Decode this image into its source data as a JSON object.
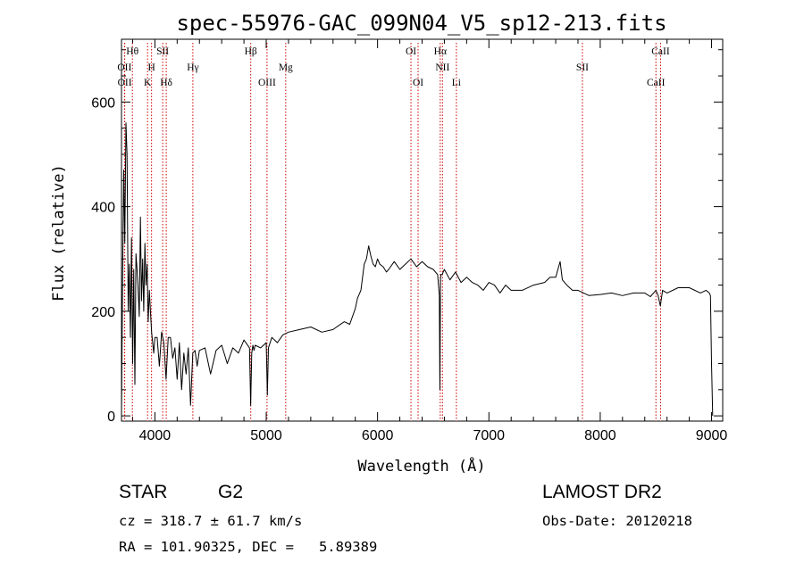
{
  "title": "spec-55976-GAC_099N04_V5_sp12-213.fits",
  "info": {
    "class": "STAR",
    "subclass": "G2",
    "survey": "LAMOST DR2",
    "cz": "cz = 318.7 ± 61.7 km/s",
    "obs_date": "Obs-Date: 20120218",
    "coords": "RA = 101.90325, DEC =   5.89389"
  },
  "chart_data": {
    "type": "line",
    "title": "spec-55976-GAC_099N04_V5_sp12-213.fits",
    "xlabel": "Wavelength (Å)",
    "ylabel": "Flux (relative)",
    "xlim": [
      3700,
      9100
    ],
    "ylim": [
      -10,
      720
    ],
    "xticks": [
      4000,
      5000,
      6000,
      7000,
      8000,
      9000
    ],
    "yticks": [
      0,
      200,
      400,
      600
    ],
    "grid": false,
    "series": [
      {
        "x": [
          3700,
          3710,
          3720,
          3730,
          3740,
          3750,
          3760,
          3770,
          3780,
          3790,
          3800,
          3810,
          3820,
          3830,
          3840,
          3850,
          3860,
          3870,
          3880,
          3890,
          3900,
          3910,
          3920,
          3930,
          3940,
          3950,
          3960,
          3970,
          3980,
          3990,
          4000,
          4020,
          4040,
          4060,
          4080,
          4100,
          4120,
          4140,
          4160,
          4180,
          4200,
          4220,
          4240,
          4260,
          4280,
          4300,
          4320,
          4340,
          4360,
          4380,
          4400,
          4450,
          4500,
          4550,
          4600,
          4650,
          4700,
          4750,
          4800,
          4850,
          4860,
          4870,
          4880,
          4890,
          4900,
          4950,
          5000,
          5010,
          5020,
          5050,
          5100,
          5150,
          5200,
          5300,
          5400,
          5500,
          5600,
          5700,
          5750,
          5800,
          5820,
          5850,
          5880,
          5900,
          5920,
          5940,
          5960,
          5980,
          6000,
          6020,
          6050,
          6080,
          6100,
          6150,
          6200,
          6250,
          6300,
          6350,
          6400,
          6450,
          6500,
          6540,
          6555,
          6560,
          6565,
          6570,
          6580,
          6600,
          6650,
          6700,
          6750,
          6800,
          6850,
          6900,
          6950,
          7000,
          7050,
          7100,
          7150,
          7200,
          7300,
          7400,
          7500,
          7550,
          7580,
          7600,
          7620,
          7640,
          7660,
          7700,
          7750,
          7800,
          7900,
          8000,
          8100,
          8200,
          8300,
          8400,
          8450,
          8500,
          8520,
          8540,
          8560,
          8600,
          8700,
          8800,
          8900,
          8950,
          8980,
          8990,
          9000,
          9010
        ],
        "y": [
          0,
          260,
          470,
          330,
          560,
          500,
          200,
          290,
          150,
          340,
          100,
          280,
          60,
          310,
          280,
          240,
          190,
          380,
          220,
          300,
          200,
          330,
          250,
          290,
          180,
          240,
          200,
          160,
          140,
          120,
          150,
          150,
          95,
          160,
          140,
          70,
          150,
          150,
          110,
          130,
          70,
          140,
          50,
          120,
          80,
          130,
          20,
          120,
          125,
          95,
          125,
          130,
          80,
          125,
          135,
          100,
          130,
          120,
          145,
          130,
          20,
          120,
          135,
          125,
          135,
          130,
          140,
          40,
          130,
          150,
          140,
          155,
          160,
          165,
          170,
          160,
          165,
          180,
          175,
          205,
          225,
          240,
          290,
          300,
          325,
          305,
          290,
          285,
          300,
          290,
          285,
          275,
          280,
          295,
          280,
          290,
          300,
          285,
          295,
          285,
          280,
          270,
          230,
          50,
          265,
          270,
          270,
          280,
          260,
          275,
          255,
          265,
          255,
          250,
          240,
          255,
          250,
          235,
          250,
          240,
          240,
          250,
          255,
          265,
          265,
          265,
          280,
          295,
          260,
          250,
          240,
          240,
          230,
          232,
          235,
          230,
          235,
          235,
          228,
          240,
          230,
          210,
          240,
          235,
          245,
          245,
          235,
          240,
          235,
          230,
          100,
          0
        ]
      }
    ],
    "line_markers": [
      {
        "label": "Hθ",
        "wave": 3798,
        "row": 0
      },
      {
        "label": "OII",
        "wave": 3727,
        "row": 1
      },
      {
        "label": "OII",
        "wave": 3729,
        "row": 2
      },
      {
        "label": "SII",
        "wave": 4070,
        "row": 0
      },
      {
        "label": "H",
        "wave": 3970,
        "row": 1
      },
      {
        "label": "K",
        "wave": 3934,
        "row": 2
      },
      {
        "label": "Hδ",
        "wave": 4102,
        "row": 2
      },
      {
        "label": "Hγ",
        "wave": 4341,
        "row": 1
      },
      {
        "label": "Hβ",
        "wave": 4861,
        "row": 0
      },
      {
        "label": "Mg",
        "wave": 5175,
        "row": 1
      },
      {
        "label": "OIII",
        "wave": 5007,
        "row": 2
      },
      {
        "label": "OI",
        "wave": 6300,
        "row": 0
      },
      {
        "label": "OI",
        "wave": 6364,
        "row": 2
      },
      {
        "label": "Hα",
        "wave": 6563,
        "row": 0
      },
      {
        "label": "NII",
        "wave": 6583,
        "row": 1
      },
      {
        "label": "Li",
        "wave": 6708,
        "row": 2
      },
      {
        "label": "SII",
        "wave": 7840,
        "row": 1
      },
      {
        "label": "CaII",
        "wave": 8542,
        "row": 0
      },
      {
        "label": "CaII",
        "wave": 8500,
        "row": 2
      }
    ],
    "marker_color": "#cc0000",
    "line_color": "#000000"
  }
}
